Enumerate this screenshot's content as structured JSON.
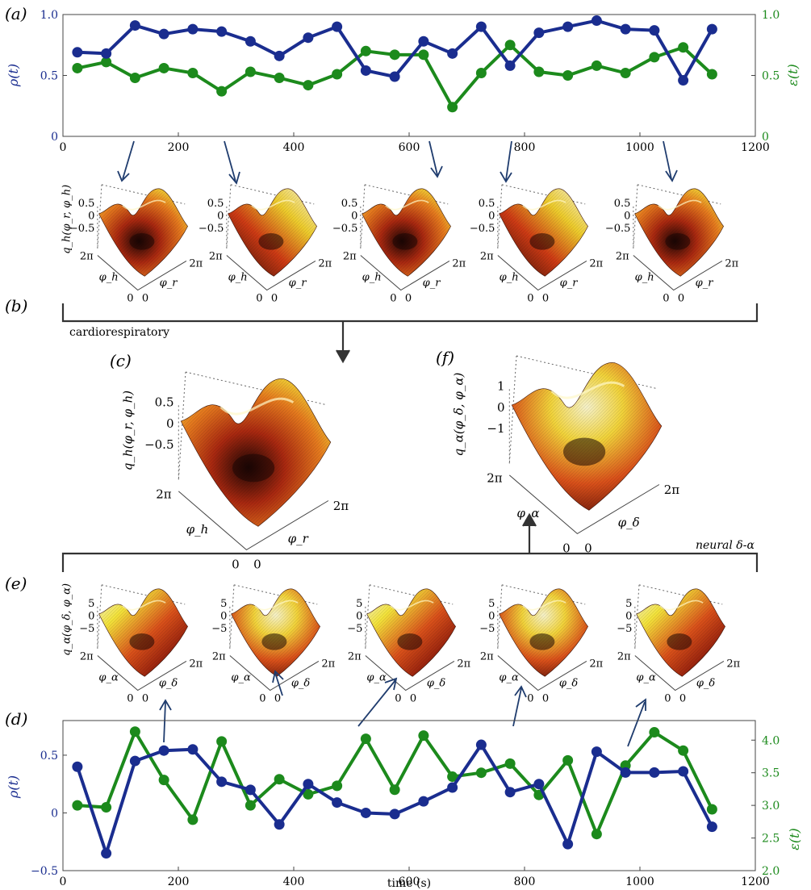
{
  "panel_labels": {
    "a": "(a)",
    "b": "(b)",
    "c": "(c)",
    "d": "(d)",
    "e": "(e)",
    "f": "(f)"
  },
  "bracket_labels": {
    "cardio": "cardiorespiratory",
    "neural": "neural δ-α"
  },
  "colors": {
    "blue": "#1a2d8f",
    "green": "#1c8a1c",
    "arrow": "#1f3c6e",
    "axis": "#444444"
  },
  "axis_text": {
    "time_label": "time (s)",
    "rho": "ρ(t)",
    "eps": "ε(t)",
    "q_h": "q_h(φ_r, φ_h)",
    "q_a": "q_α(φ_δ, φ_α)",
    "phi_h": "φ_h",
    "phi_r": "φ_r",
    "phi_a": "φ_α",
    "phi_d": "φ_δ",
    "two_pi": "2π",
    "zero": "0"
  },
  "chart_data": [
    {
      "type": "line",
      "panel": "(a)",
      "x": [
        25,
        75,
        125,
        175,
        225,
        275,
        325,
        375,
        425,
        475,
        525,
        575,
        625,
        675,
        725,
        775,
        825,
        875,
        925,
        975,
        1025,
        1075,
        1125
      ],
      "xlim": [
        0,
        1200
      ],
      "xticks": [
        0,
        200,
        400,
        600,
        800,
        1000,
        1200
      ],
      "series": [
        {
          "name": "ρ(t)",
          "axis": "left",
          "color": "#1a2d8f",
          "values": [
            0.69,
            0.68,
            0.91,
            0.84,
            0.88,
            0.86,
            0.78,
            0.66,
            0.81,
            0.9,
            0.54,
            0.49,
            0.78,
            0.68,
            0.9,
            0.58,
            0.85,
            0.9,
            0.95,
            0.88,
            0.87,
            0.46,
            0.88
          ]
        },
        {
          "name": "ε(t)",
          "axis": "right",
          "color": "#1c8a1c",
          "values": [
            0.56,
            0.61,
            0.48,
            0.56,
            0.52,
            0.37,
            0.53,
            0.48,
            0.42,
            0.51,
            0.7,
            0.67,
            0.67,
            0.24,
            0.52,
            0.75,
            0.53,
            0.5,
            0.58,
            0.52,
            0.65,
            0.73,
            0.51
          ]
        }
      ],
      "ylim_left": [
        0,
        1
      ],
      "yticks_left": [
        "0",
        "0.5",
        "1.0"
      ],
      "ylim_right": [
        0,
        1
      ],
      "yticks_right": [
        "0",
        "0.5",
        "1.0"
      ],
      "ylabel_left": "ρ(t)",
      "ylabel_right": "ε(t)"
    },
    {
      "type": "line",
      "panel": "(d)",
      "x": [
        25,
        75,
        125,
        175,
        225,
        275,
        325,
        375,
        425,
        475,
        525,
        575,
        625,
        675,
        725,
        775,
        825,
        875,
        925,
        975,
        1025,
        1075,
        1125
      ],
      "xlim": [
        0,
        1200
      ],
      "xticks": [
        0,
        200,
        400,
        600,
        800,
        1000,
        1200
      ],
      "xlabel": "time (s)",
      "series": [
        {
          "name": "ρ(t)",
          "axis": "left",
          "color": "#1a2d8f",
          "values": [
            0.4,
            -0.35,
            0.45,
            0.54,
            0.55,
            0.27,
            0.2,
            -0.1,
            0.25,
            0.09,
            0.0,
            -0.01,
            0.1,
            0.22,
            0.59,
            0.18,
            0.25,
            -0.27,
            0.53,
            0.35,
            0.35,
            0.36,
            -0.12
          ]
        },
        {
          "name": "ε(t)",
          "axis": "right",
          "color": "#1c8a1c",
          "values": [
            3.0,
            2.97,
            4.13,
            3.39,
            2.78,
            3.98,
            3.0,
            3.4,
            3.17,
            3.3,
            4.02,
            3.24,
            4.07,
            3.44,
            3.5,
            3.64,
            3.16,
            3.69,
            2.56,
            3.61,
            4.12,
            3.84,
            2.94
          ]
        }
      ],
      "ylim_left": [
        -0.5,
        0.8
      ],
      "yticks_left": [
        "−0.5",
        "0",
        "0.5"
      ],
      "ylim_right": [
        2.0,
        4.3
      ],
      "yticks_right": [
        "2.0",
        "2.5",
        "3.0",
        "3.5",
        "4.0"
      ],
      "ylabel_left": "ρ(t)",
      "ylabel_right": "ε(t)"
    }
  ],
  "surfaces": {
    "b_zticks": [
      "0.5",
      "0",
      "−0.5"
    ],
    "c_zticks": [
      "0.5",
      "0",
      "−0.5"
    ],
    "e_zticks": [
      "5",
      "0",
      "−5"
    ],
    "f_zticks": [
      "1",
      "0",
      "−1"
    ]
  }
}
